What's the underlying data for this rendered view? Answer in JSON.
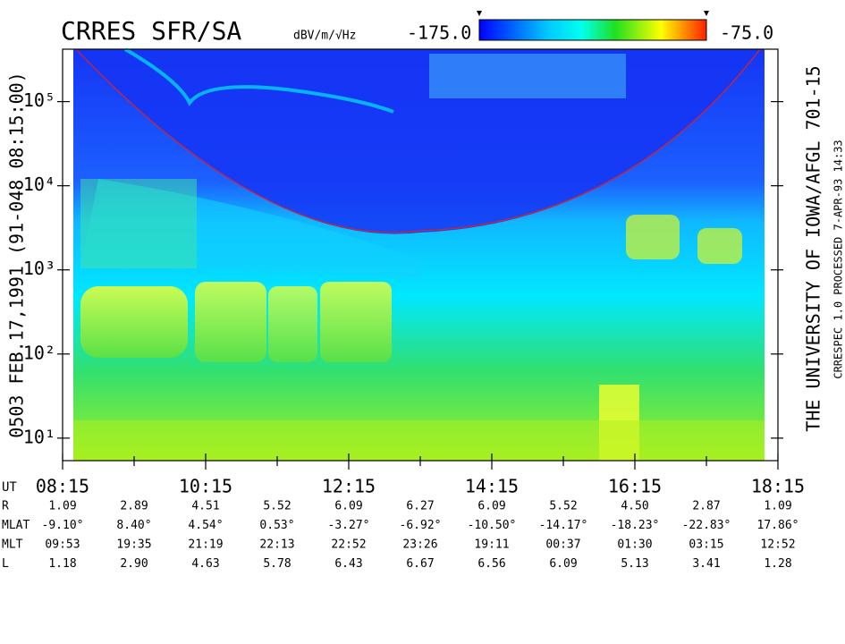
{
  "chart_data": {
    "type": "spectrogram",
    "title": "CRRES SFR/SA",
    "colorbar": {
      "label": "dBV/m/√Hz",
      "clim": [
        -175,
        -75
      ],
      "clim_labels": [
        "-175.0",
        "-75.0"
      ]
    },
    "left_label": "0503  FEB.17,1991  (91-048 08:15:00)",
    "right_label": "THE UNIVERSITY OF IOWA/AFGL 701-15",
    "footer_note": "CRRESPEC 1.0   PROCESSED  7-APR-93  14:33",
    "y_log": true,
    "ylim": [
      5.4,
      420000
    ],
    "yticks": [
      {
        "value": 10,
        "label": "10¹"
      },
      {
        "value": 100,
        "label": "10²"
      },
      {
        "value": 1000,
        "label": "10³"
      },
      {
        "value": 10000,
        "label": "10⁴"
      },
      {
        "value": 100000,
        "label": "10⁵"
      }
    ],
    "xlim": [
      8.25,
      18.25
    ],
    "xticks": [
      {
        "value": 8.25,
        "label": "08:15"
      },
      {
        "value": 10.25,
        "label": "10:15"
      },
      {
        "value": 12.25,
        "label": "12:15"
      },
      {
        "value": 14.25,
        "label": "14:15"
      },
      {
        "value": 16.25,
        "label": "16:15"
      },
      {
        "value": 18.25,
        "label": "18:15"
      }
    ],
    "xminor": [
      9.25,
      11.25,
      13.25,
      15.25,
      17.25
    ]
  },
  "ephemeris": {
    "x_label": "UT",
    "rows": [
      {
        "name": "R",
        "values": [
          "1.09",
          "2.89",
          "4.51",
          "5.52",
          "6.09",
          "6.27",
          "6.09",
          "5.52",
          "4.50",
          "2.87",
          "1.09"
        ]
      },
      {
        "name": "MLAT",
        "values": [
          "-9.10°",
          "8.40°",
          "4.54°",
          "0.53°",
          "-3.27°",
          "-6.92°",
          "-10.50°",
          "-14.17°",
          "-18.23°",
          "-22.83°",
          "17.86°"
        ]
      },
      {
        "name": "MLT",
        "values": [
          "09:53",
          "19:35",
          "21:19",
          "22:13",
          "22:52",
          "23:26",
          "19:11",
          "00:37",
          "01:30",
          "03:15",
          "12:52"
        ]
      },
      {
        "name": "L",
        "values": [
          "1.18",
          "2.90",
          "4.63",
          "5.78",
          "6.43",
          "6.67",
          "6.56",
          "6.09",
          "5.13",
          "3.41",
          "1.28"
        ]
      }
    ]
  }
}
